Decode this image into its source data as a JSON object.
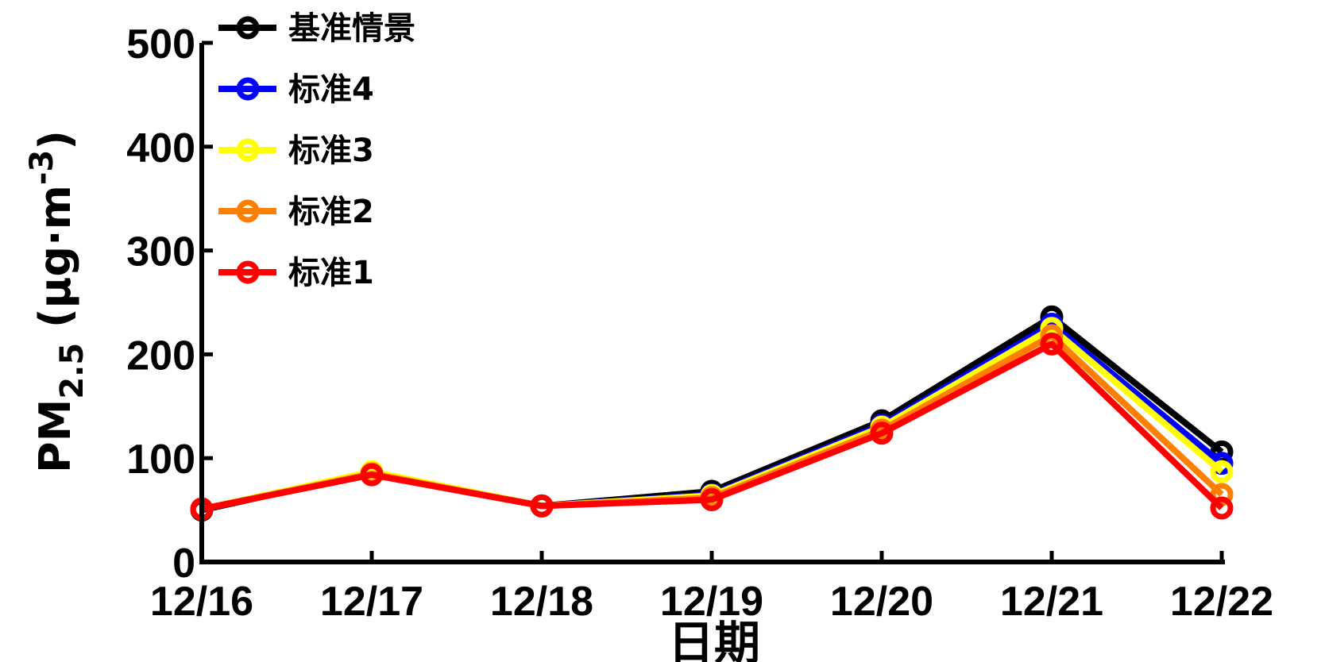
{
  "chart_data": {
    "type": "line",
    "categories": [
      "12/16",
      "12/17",
      "12/18",
      "12/19",
      "12/20",
      "12/21",
      "12/22"
    ],
    "xlabel": "日期",
    "ylabel": {
      "main": "PM",
      "subscript": "2.5",
      "unit_prefix": " (μg·m",
      "unit_superscript": "-3",
      "unit_suffix": ")"
    },
    "ylim": [
      0,
      500
    ],
    "yticks": [
      0,
      100,
      200,
      300,
      400,
      500
    ],
    "grid": false,
    "legend_position": "top-left",
    "series": [
      {
        "name": "基准情景",
        "color": "#000000",
        "values": [
          50,
          86,
          54,
          68,
          136,
          236,
          106
        ]
      },
      {
        "name": "标准4",
        "color": "#0000ff",
        "values": [
          51,
          86,
          54,
          65,
          132,
          229,
          95
        ]
      },
      {
        "name": "标准3",
        "color": "#ffff00",
        "values": [
          51,
          87,
          54,
          64,
          130,
          225,
          87
        ]
      },
      {
        "name": "标准2",
        "color": "#ff8000",
        "values": [
          51,
          85,
          54,
          62,
          127,
          218,
          65
        ]
      },
      {
        "name": "标准1",
        "color": "#ff0000",
        "values": [
          51,
          84,
          54,
          60,
          124,
          210,
          52
        ]
      }
    ]
  }
}
